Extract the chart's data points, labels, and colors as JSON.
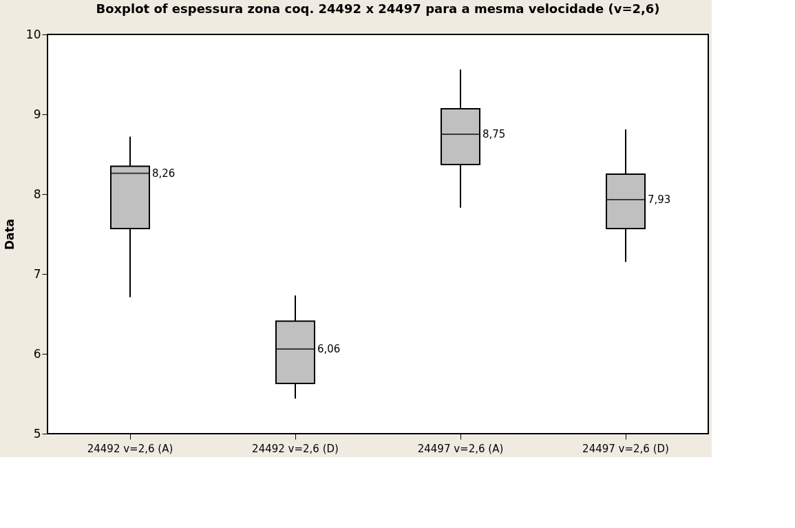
{
  "chart_data": {
    "type": "box",
    "title": "Boxplot of espessura zona coq. 24492 x 24497 para a mesma velocidade (v=2,6)",
    "ylabel": "Data",
    "categories": [
      "24492 v=2,6 (A)",
      "24492 v=2,6 (D)",
      "24497 v=2,6 (A)",
      "24497 v=2,6 (D)"
    ],
    "boxes": [
      {
        "low": 6.71,
        "q1": 7.57,
        "median": 8.26,
        "q3": 8.35,
        "high": 8.72
      },
      {
        "low": 5.44,
        "q1": 5.63,
        "median": 6.06,
        "q3": 6.41,
        "high": 6.73
      },
      {
        "low": 7.83,
        "q1": 8.37,
        "median": 8.75,
        "q3": 9.07,
        "high": 9.56
      },
      {
        "low": 7.15,
        "q1": 7.57,
        "median": 7.93,
        "q3": 8.25,
        "high": 8.81
      }
    ],
    "value_labels": [
      "8,26",
      "6,06",
      "8,75",
      "7,93"
    ],
    "color": "#c0c0c0",
    "ylim": [
      5,
      10
    ],
    "yticks": [
      5,
      6,
      7,
      8,
      9,
      10
    ],
    "grid": false
  }
}
